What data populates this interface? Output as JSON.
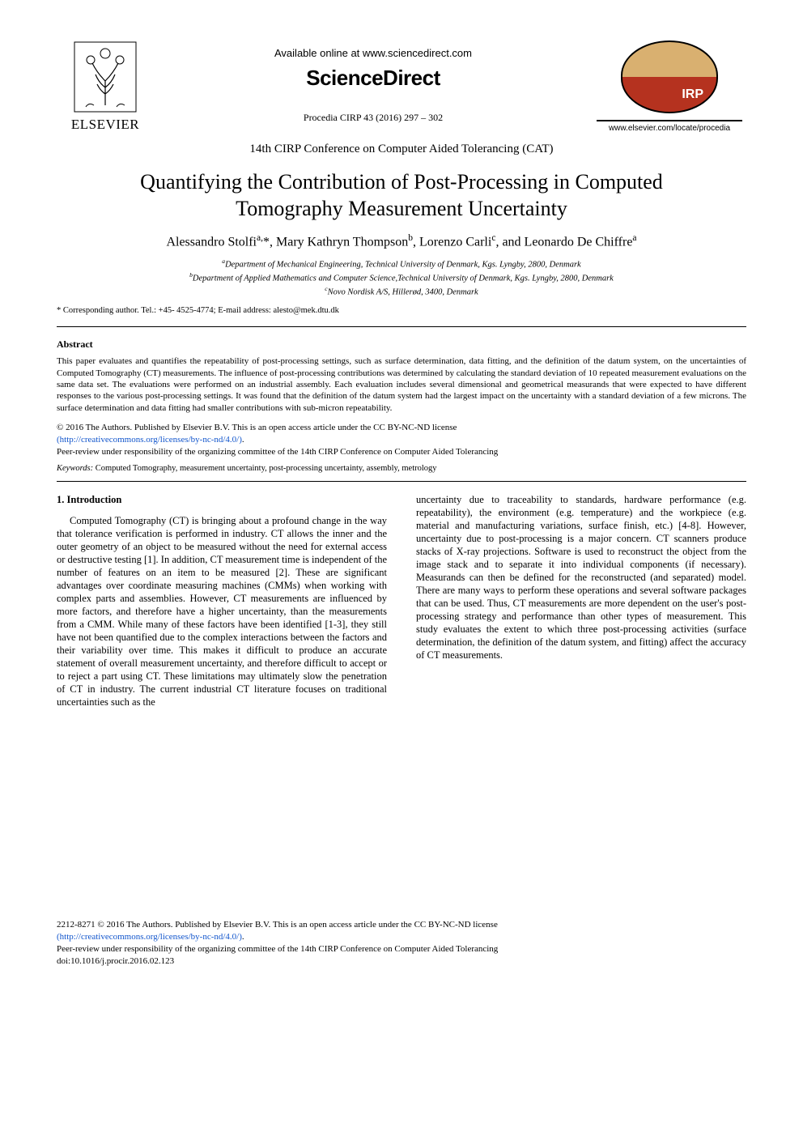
{
  "header": {
    "available_line": "Available online at www.sciencedirect.com",
    "sciencedirect": "ScienceDirect",
    "procedia_line": "Procedia CIRP 43 (2016) 297 – 302",
    "elsevier_label": "ELSEVIER",
    "cirp_logo_text": "IRP",
    "elsevier_url": "www.elsevier.com/locate/procedia"
  },
  "conference_line": "14th CIRP Conference on Computer Aided Tolerancing (CAT)",
  "title": "Quantifying the Contribution of Post-Processing in Computed Tomography Measurement Uncertainty",
  "authors_html": "Alessandro Stolfi<sup>a,</sup>*, Mary Kathryn Thompson<sup>b</sup>, Lorenzo Carli<sup>c</sup>, and Leonardo De Chiffre<sup>a</sup>",
  "affiliations": {
    "a": "Department of Mechanical Engineering, Technical University of Denmark, Kgs. Lyngby, 2800, Denmark",
    "b": "Department of Applied Mathematics and Computer Science,Technical University of Denmark, Kgs. Lyngby, 2800, Denmark",
    "c": "Novo Nordisk A/S, Hillerød, 3400, Denmark"
  },
  "corresponding": "* Corresponding author. Tel.: +45- 4525-4774; E-mail address: alesto@mek.dtu.dk",
  "abstract_heading": "Abstract",
  "abstract_text": "This paper evaluates and quantifies the repeatability of post-processing settings, such as surface determination, data fitting, and the definition of the datum system, on the uncertainties of Computed Tomography (CT) measurements. The influence of post-processing contributions was determined by calculating the standard deviation of 10 repeated measurement evaluations on the same data set. The evaluations were performed on an industrial assembly. Each evaluation includes several dimensional and geometrical measurands that were expected to have different responses to the various post-processing settings. It was found that the definition of the datum system had the largest impact on the uncertainty with a standard deviation of a few microns. The surface determination and data fitting had smaller contributions with sub-micron repeatability.",
  "license": {
    "line1": "© 2016 The Authors. Published by Elsevier B.V.  This is an open access article under the CC BY-NC-ND license",
    "link_text": "(http://creativecommons.org/licenses/by-nc-nd/4.0/)",
    "link_href": "http://creativecommons.org/licenses/by-nc-nd/4.0/",
    "peer_review": "Peer-review under responsibility of the organizing committee of the 14th CIRP Conference on Computer Aided Tolerancing"
  },
  "keywords_label": "Keywords:",
  "keywords_text": " Computed Tomography, measurement uncertainty, post-processing uncertainty, assembly, metrology",
  "section_heading": "1. Introduction",
  "col_left": "Computed Tomography (CT) is bringing about a profound change in the way that tolerance verification is performed in industry. CT allows the inner and the outer geometry of an object to be measured without the need for external access or destructive testing [1]. In addition, CT measurement time is independent of the number of features on an item to be measured [2]. These are significant advantages over coordinate measuring machines (CMMs) when working with complex parts and assemblies. However, CT measurements are influenced by more factors, and therefore have a higher uncertainty, than the measurements from a CMM. While many of these factors have been identified [1-3], they still have not been quantified due to the complex interactions between the factors and their variability over time. This makes it difficult to produce an accurate statement of overall measurement uncertainty, and therefore difficult to accept or to reject a part using CT. These limitations may ultimately slow the penetration of CT in industry. The current industrial CT literature focuses on traditional uncertainties such as the",
  "col_right": "uncertainty due to traceability to standards, hardware performance (e.g. repeatability), the environment (e.g. temperature) and the workpiece (e.g. material and manufacturing variations, surface finish, etc.) [4-8]. However, uncertainty due to post-processing is a major concern. CT scanners produce stacks of X-ray projections. Software is used to reconstruct the object from the image stack and to separate it into individual components (if necessary). Measurands can then be defined for the reconstructed (and separated) model. There are many ways to perform these operations and several software packages that can be used. Thus, CT measurements are more dependent on the user's post-processing strategy and performance than other types of measurement.  This study evaluates the extent to which three post-processing activities (surface determination, the definition of the datum system, and fitting) affect the accuracy of CT measurements.",
  "footer": {
    "issn_line": "2212-8271 © 2016 The Authors. Published by Elsevier B.V. This is an open access article under the CC BY-NC-ND license",
    "link_text": "(http://creativecommons.org/licenses/by-nc-nd/4.0/)",
    "link_href": "http://creativecommons.org/licenses/by-nc-nd/4.0/",
    "peer_review": "Peer-review under responsibility of the organizing committee of the 14th CIRP Conference on Computer Aided Tolerancing",
    "doi": "doi:10.1016/j.procir.2016.02.123"
  },
  "colors": {
    "text": "#000000",
    "background": "#ffffff",
    "link": "#1155cc",
    "cirp_top": "#d9b070",
    "cirp_bottom": "#b5321f"
  },
  "fonts": {
    "body_family": "Times New Roman",
    "sans_family": "Arial",
    "title_size_pt": 20,
    "authors_size_pt": 12,
    "affil_size_pt": 8,
    "abstract_size_pt": 8.5,
    "body_size_pt": 9.5
  }
}
